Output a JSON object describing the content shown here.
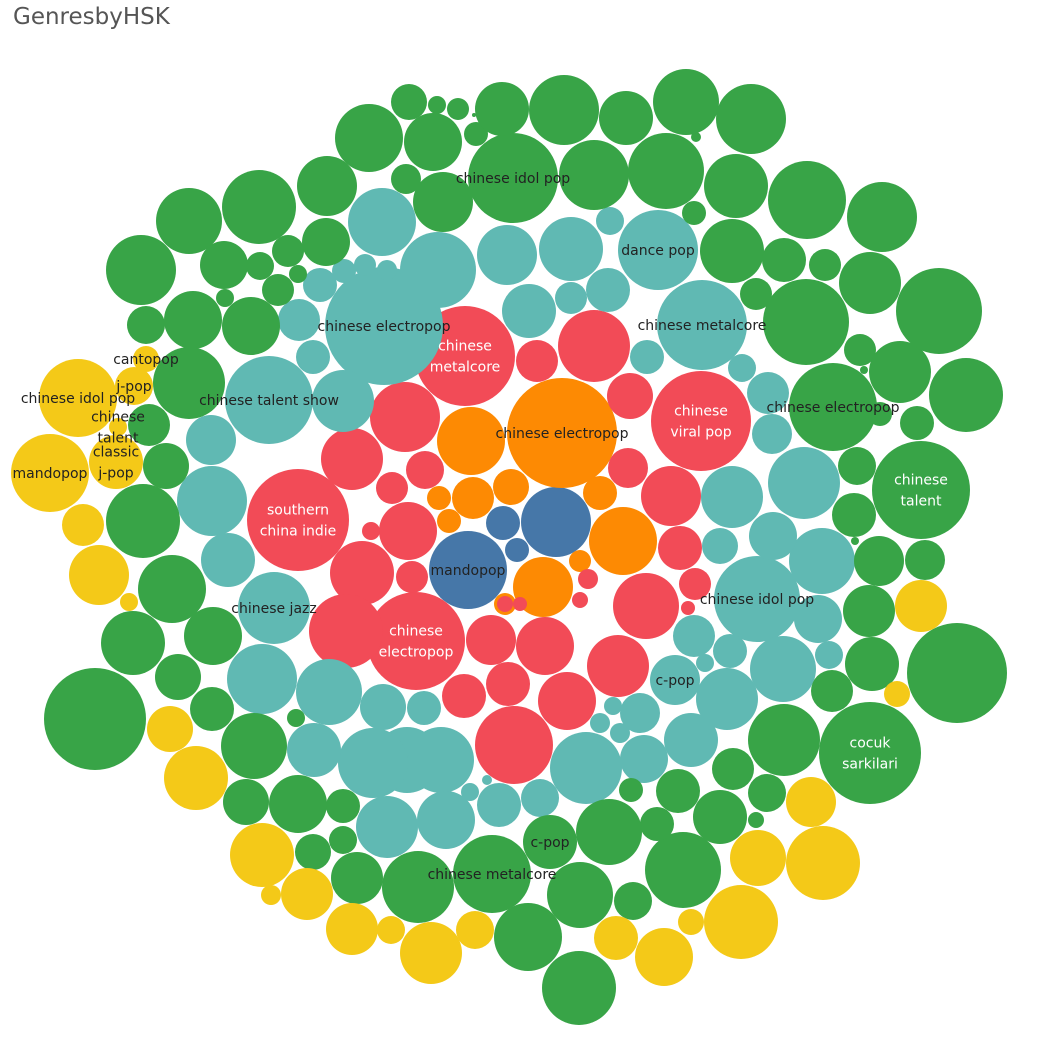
{
  "title": "GenresbyHSK",
  "chart_data": {
    "type": "packed-bubble",
    "title": "GenresbyHSK",
    "colors": {
      "yellow": "#f4c918",
      "green": "#38a447",
      "teal": "#60b9b3",
      "red": "#f24b57",
      "orange": "#fd8a03",
      "blue": "#4677a8"
    },
    "label_colors": {
      "light": "#ffffff",
      "dark": "#222222"
    },
    "bubbles": [
      {
        "label": "mandopop",
        "color": "blue",
        "label_color": "dark"
      },
      {
        "label": "",
        "color": "blue"
      },
      {
        "label": "",
        "color": "blue"
      },
      {
        "label": "",
        "color": "blue"
      },
      {
        "label": "chinese electropop",
        "color": "orange",
        "label_color": "dark"
      },
      {
        "label": "",
        "color": "orange"
      },
      {
        "label": "",
        "color": "orange"
      },
      {
        "label": "",
        "color": "orange"
      },
      {
        "label": "",
        "color": "orange"
      },
      {
        "label": "",
        "color": "orange"
      },
      {
        "label": "",
        "color": "orange"
      },
      {
        "label": "",
        "color": "orange"
      },
      {
        "label": "",
        "color": "orange"
      },
      {
        "label": "",
        "color": "orange"
      },
      {
        "label": "",
        "color": "orange"
      },
      {
        "label": "chinese metalcore",
        "color": "red",
        "label_color": "light"
      },
      {
        "label": "chinese viral pop",
        "color": "red",
        "label_color": "light"
      },
      {
        "label": "southern china indie",
        "color": "red",
        "label_color": "light"
      },
      {
        "label": "chinese electropop",
        "color": "red",
        "label_color": "light"
      },
      {
        "label": "",
        "color": "red"
      },
      {
        "label": "",
        "color": "red"
      },
      {
        "label": "",
        "color": "red"
      },
      {
        "label": "",
        "color": "red"
      },
      {
        "label": "",
        "color": "red"
      },
      {
        "label": "",
        "color": "red"
      },
      {
        "label": "",
        "color": "red"
      },
      {
        "label": "",
        "color": "red"
      },
      {
        "label": "",
        "color": "red"
      },
      {
        "label": "",
        "color": "red"
      },
      {
        "label": "",
        "color": "red"
      },
      {
        "label": "",
        "color": "red"
      },
      {
        "label": "",
        "color": "red"
      },
      {
        "label": "",
        "color": "red"
      },
      {
        "label": "",
        "color": "red"
      },
      {
        "label": "",
        "color": "red"
      },
      {
        "label": "",
        "color": "red"
      },
      {
        "label": "",
        "color": "red"
      },
      {
        "label": "",
        "color": "red"
      },
      {
        "label": "",
        "color": "red"
      },
      {
        "label": "",
        "color": "red"
      },
      {
        "label": "",
        "color": "red"
      },
      {
        "label": "",
        "color": "red"
      },
      {
        "label": "",
        "color": "red"
      },
      {
        "label": "",
        "color": "red"
      },
      {
        "label": "",
        "color": "red"
      },
      {
        "label": "",
        "color": "red"
      },
      {
        "label": "",
        "color": "red"
      },
      {
        "label": "",
        "color": "red"
      },
      {
        "label": "chinese electropop",
        "color": "teal",
        "label_color": "dark"
      },
      {
        "label": "chinese metalcore",
        "color": "teal",
        "label_color": "dark"
      },
      {
        "label": "chinese idol pop",
        "color": "teal",
        "label_color": "dark"
      },
      {
        "label": "chinese talent show",
        "color": "teal",
        "label_color": "dark"
      },
      {
        "label": "dance pop",
        "color": "teal",
        "label_color": "dark"
      },
      {
        "label": "chinese jazz",
        "color": "teal",
        "label_color": "dark"
      },
      {
        "label": "c-pop",
        "color": "teal",
        "label_color": "dark"
      },
      {
        "label": "",
        "color": "teal"
      },
      {
        "label": "",
        "color": "teal"
      },
      {
        "label": "",
        "color": "teal"
      },
      {
        "label": "",
        "color": "teal"
      },
      {
        "label": "",
        "color": "teal"
      },
      {
        "label": "",
        "color": "teal"
      },
      {
        "label": "",
        "color": "teal"
      },
      {
        "label": "",
        "color": "teal"
      },
      {
        "label": "",
        "color": "teal"
      },
      {
        "label": "",
        "color": "teal"
      },
      {
        "label": "",
        "color": "teal"
      },
      {
        "label": "",
        "color": "teal"
      },
      {
        "label": "",
        "color": "teal"
      },
      {
        "label": "",
        "color": "teal"
      },
      {
        "label": "",
        "color": "teal"
      },
      {
        "label": "",
        "color": "teal"
      },
      {
        "label": "",
        "color": "teal"
      },
      {
        "label": "",
        "color": "teal"
      },
      {
        "label": "",
        "color": "teal"
      },
      {
        "label": "",
        "color": "teal"
      },
      {
        "label": "",
        "color": "teal"
      },
      {
        "label": "",
        "color": "teal"
      },
      {
        "label": "",
        "color": "teal"
      },
      {
        "label": "",
        "color": "teal"
      },
      {
        "label": "",
        "color": "teal"
      },
      {
        "label": "",
        "color": "teal"
      },
      {
        "label": "",
        "color": "teal"
      },
      {
        "label": "",
        "color": "teal"
      },
      {
        "label": "",
        "color": "teal"
      },
      {
        "label": "",
        "color": "teal"
      },
      {
        "label": "",
        "color": "teal"
      },
      {
        "label": "",
        "color": "teal"
      },
      {
        "label": "",
        "color": "teal"
      },
      {
        "label": "",
        "color": "teal"
      },
      {
        "label": "",
        "color": "teal"
      },
      {
        "label": "",
        "color": "teal"
      },
      {
        "label": "",
        "color": "teal"
      },
      {
        "label": "",
        "color": "teal"
      },
      {
        "label": "",
        "color": "teal"
      },
      {
        "label": "",
        "color": "teal"
      },
      {
        "label": "",
        "color": "teal"
      },
      {
        "label": "",
        "color": "teal"
      },
      {
        "label": "",
        "color": "teal"
      },
      {
        "label": "",
        "color": "teal"
      },
      {
        "label": "",
        "color": "teal"
      },
      {
        "label": "",
        "color": "teal"
      },
      {
        "label": "",
        "color": "teal"
      },
      {
        "label": "",
        "color": "teal"
      },
      {
        "label": "",
        "color": "teal"
      },
      {
        "label": "",
        "color": "teal"
      },
      {
        "label": "",
        "color": "teal"
      },
      {
        "label": "",
        "color": "teal"
      },
      {
        "label": "",
        "color": "teal"
      },
      {
        "label": "",
        "color": "teal"
      },
      {
        "label": "",
        "color": "teal"
      },
      {
        "label": "chinese idol pop",
        "color": "green",
        "label_color": "dark"
      },
      {
        "label": "chinese electropop",
        "color": "green",
        "label_color": "dark"
      },
      {
        "label": "chinese talent",
        "color": "green",
        "label_color": "light"
      },
      {
        "label": "cocuk sarkilari",
        "color": "green",
        "label_color": "light"
      },
      {
        "label": "c-pop",
        "color": "green",
        "label_color": "dark"
      },
      {
        "label": "chinese metalcore",
        "color": "green",
        "label_color": "dark"
      },
      {
        "label": "",
        "color": "green"
      },
      {
        "label": "",
        "color": "green"
      },
      {
        "label": "",
        "color": "green"
      },
      {
        "label": "",
        "color": "green"
      },
      {
        "label": "",
        "color": "green"
      },
      {
        "label": "",
        "color": "green"
      },
      {
        "label": "",
        "color": "green"
      },
      {
        "label": "",
        "color": "green"
      },
      {
        "label": "",
        "color": "green"
      },
      {
        "label": "",
        "color": "green"
      },
      {
        "label": "",
        "color": "green"
      },
      {
        "label": "",
        "color": "green"
      },
      {
        "label": "",
        "color": "green"
      },
      {
        "label": "",
        "color": "green"
      },
      {
        "label": "",
        "color": "green"
      },
      {
        "label": "",
        "color": "green"
      },
      {
        "label": "",
        "color": "green"
      },
      {
        "label": "",
        "color": "green"
      },
      {
        "label": "",
        "color": "green"
      },
      {
        "label": "",
        "color": "green"
      },
      {
        "label": "",
        "color": "green"
      },
      {
        "label": "",
        "color": "green"
      },
      {
        "label": "",
        "color": "green"
      },
      {
        "label": "",
        "color": "green"
      },
      {
        "label": "",
        "color": "green"
      },
      {
        "label": "",
        "color": "green"
      },
      {
        "label": "",
        "color": "green"
      },
      {
        "label": "",
        "color": "green"
      },
      {
        "label": "",
        "color": "green"
      },
      {
        "label": "",
        "color": "green"
      },
      {
        "label": "",
        "color": "green"
      },
      {
        "label": "",
        "color": "green"
      },
      {
        "label": "",
        "color": "green"
      },
      {
        "label": "",
        "color": "green"
      },
      {
        "label": "",
        "color": "green"
      },
      {
        "label": "",
        "color": "green"
      },
      {
        "label": "",
        "color": "green"
      },
      {
        "label": "",
        "color": "green"
      },
      {
        "label": "",
        "color": "green"
      },
      {
        "label": "",
        "color": "green"
      },
      {
        "label": "",
        "color": "green"
      },
      {
        "label": "",
        "color": "green"
      },
      {
        "label": "",
        "color": "green"
      },
      {
        "label": "",
        "color": "green"
      },
      {
        "label": "",
        "color": "green"
      },
      {
        "label": "",
        "color": "green"
      },
      {
        "label": "",
        "color": "green"
      },
      {
        "label": "",
        "color": "green"
      },
      {
        "label": "",
        "color": "green"
      },
      {
        "label": "",
        "color": "green"
      },
      {
        "label": "",
        "color": "green"
      },
      {
        "label": "",
        "color": "green"
      },
      {
        "label": "",
        "color": "green"
      },
      {
        "label": "",
        "color": "green"
      },
      {
        "label": "",
        "color": "green"
      },
      {
        "label": "",
        "color": "green"
      },
      {
        "label": "",
        "color": "green"
      },
      {
        "label": "",
        "color": "green"
      },
      {
        "label": "",
        "color": "green"
      },
      {
        "label": "",
        "color": "green"
      },
      {
        "label": "",
        "color": "green"
      },
      {
        "label": "",
        "color": "green"
      },
      {
        "label": "",
        "color": "green"
      },
      {
        "label": "",
        "color": "green"
      },
      {
        "label": "",
        "color": "green"
      },
      {
        "label": "",
        "color": "green"
      },
      {
        "label": "",
        "color": "green"
      },
      {
        "label": "",
        "color": "green"
      },
      {
        "label": "",
        "color": "green"
      },
      {
        "label": "",
        "color": "green"
      },
      {
        "label": "",
        "color": "green"
      },
      {
        "label": "",
        "color": "green"
      },
      {
        "label": "",
        "color": "green"
      },
      {
        "label": "",
        "color": "green"
      },
      {
        "label": "",
        "color": "green"
      },
      {
        "label": "",
        "color": "green"
      },
      {
        "label": "",
        "color": "green"
      },
      {
        "label": "",
        "color": "green"
      },
      {
        "label": "",
        "color": "green"
      },
      {
        "label": "",
        "color": "green"
      },
      {
        "label": "",
        "color": "green"
      },
      {
        "label": "",
        "color": "green"
      },
      {
        "label": "",
        "color": "green"
      },
      {
        "label": "",
        "color": "green"
      },
      {
        "label": "",
        "color": "green"
      },
      {
        "label": "",
        "color": "green"
      },
      {
        "label": "",
        "color": "green"
      },
      {
        "label": "",
        "color": "green"
      },
      {
        "label": "",
        "color": "green"
      },
      {
        "label": "",
        "color": "green"
      },
      {
        "label": "",
        "color": "green"
      },
      {
        "label": "cantopop",
        "color": "yellow",
        "label_color": "dark"
      },
      {
        "label": "j-pop",
        "color": "yellow",
        "label_color": "dark"
      },
      {
        "label": "chinese idol pop",
        "color": "yellow",
        "label_color": "dark"
      },
      {
        "label": "chinese talent",
        "color": "yellow",
        "label_color": "dark"
      },
      {
        "label": "classic j-pop",
        "color": "yellow",
        "label_color": "dark"
      },
      {
        "label": "mandopop",
        "color": "yellow",
        "label_color": "dark"
      },
      {
        "label": "",
        "color": "yellow"
      },
      {
        "label": "",
        "color": "yellow"
      },
      {
        "label": "",
        "color": "yellow"
      },
      {
        "label": "",
        "color": "yellow"
      },
      {
        "label": "",
        "color": "yellow"
      },
      {
        "label": "",
        "color": "yellow"
      },
      {
        "label": "",
        "color": "yellow"
      },
      {
        "label": "",
        "color": "yellow"
      },
      {
        "label": "",
        "color": "yellow"
      },
      {
        "label": "",
        "color": "yellow"
      },
      {
        "label": "",
        "color": "yellow"
      },
      {
        "label": "",
        "color": "yellow"
      },
      {
        "label": "",
        "color": "yellow"
      },
      {
        "label": "",
        "color": "yellow"
      },
      {
        "label": "",
        "color": "yellow"
      },
      {
        "label": "",
        "color": "yellow"
      },
      {
        "label": "",
        "color": "yellow"
      },
      {
        "label": "",
        "color": "yellow"
      },
      {
        "label": "",
        "color": "yellow"
      },
      {
        "label": "",
        "color": "yellow"
      },
      {
        "label": "",
        "color": "yellow"
      },
      {
        "label": "",
        "color": "yellow"
      },
      {
        "label": "",
        "color": "yellow"
      },
      {
        "label": "",
        "color": "yellow"
      },
      {
        "label": "",
        "color": "yellow"
      },
      {
        "label": "",
        "color": "yellow"
      },
      {
        "label": "",
        "color": "yellow"
      },
      {
        "label": "",
        "color": "yellow"
      },
      {
        "label": "",
        "color": "yellow"
      },
      {
        "label": "",
        "color": "yellow"
      },
      {
        "label": "",
        "color": "yellow"
      },
      {
        "label": "",
        "color": "yellow"
      },
      {
        "label": "",
        "color": "yellow"
      },
      {
        "label": "",
        "color": "yellow"
      },
      {
        "label": "",
        "color": "yellow"
      },
      {
        "label": "",
        "color": "yellow"
      },
      {
        "label": "",
        "color": "yellow"
      },
      {
        "label": "",
        "color": "yellow"
      },
      {
        "label": "",
        "color": "yellow"
      },
      {
        "label": "",
        "color": "yellow"
      },
      {
        "label": "",
        "color": "yellow"
      },
      {
        "label": "",
        "color": "yellow"
      },
      {
        "label": "",
        "color": "yellow"
      },
      {
        "label": "",
        "color": "yellow"
      },
      {
        "label": "",
        "color": "yellow"
      },
      {
        "label": "",
        "color": "yellow"
      },
      {
        "label": "",
        "color": "yellow"
      },
      {
        "label": "",
        "color": "yellow"
      },
      {
        "label": "",
        "color": "yellow"
      },
      {
        "label": "",
        "color": "yellow"
      }
    ]
  }
}
